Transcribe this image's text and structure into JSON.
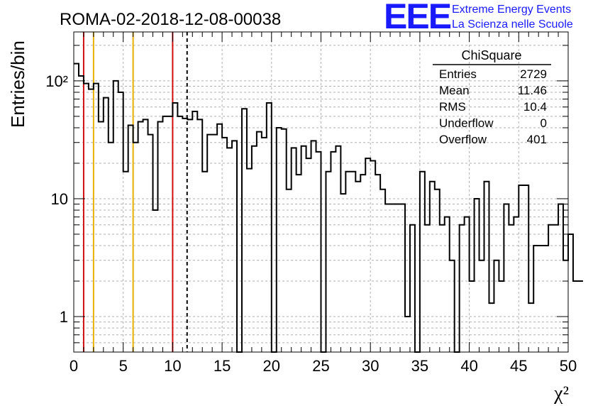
{
  "title": "ROMA-02-2018-12-08-00038",
  "logo": {
    "mark": "EEE",
    "line1": "Extreme Energy Events",
    "line2": "La Scienza nelle Scuole",
    "color": "#1a1aff"
  },
  "stats": {
    "name": "ChiSquare",
    "rows": [
      {
        "label": "Entries",
        "value": "2729"
      },
      {
        "label": "Mean",
        "value": "11.46"
      },
      {
        "label": "RMS",
        "value": "10.4"
      },
      {
        "label": "Underflow",
        "value": "0"
      },
      {
        "label": "Overflow",
        "value": "401"
      }
    ]
  },
  "chart_data": {
    "type": "histogram",
    "xlabel": "χ²",
    "ylabel": "Entries/bin",
    "xlim": [
      0,
      50
    ],
    "ylim": [
      0.5,
      260
    ],
    "yscale": "log",
    "grid": true,
    "bin_width": 0.5,
    "x_ticks": [
      "0",
      "5",
      "10",
      "15",
      "20",
      "25",
      "30",
      "35",
      "40",
      "45",
      "50"
    ],
    "y_ticks": [
      {
        "value": 1,
        "label": "1"
      },
      {
        "value": 10,
        "label": "10"
      },
      {
        "value": 100,
        "label": "10²"
      }
    ],
    "bin_values": [
      140,
      110,
      95,
      85,
      95,
      45,
      72,
      30,
      100,
      80,
      17,
      42,
      30,
      45,
      47,
      35,
      8,
      45,
      50,
      50,
      65,
      50,
      48,
      47,
      55,
      47,
      17,
      35,
      35,
      43,
      33,
      27,
      31,
      0.3,
      58,
      18,
      28,
      37,
      33,
      65,
      0.3,
      40,
      39,
      12,
      27,
      16,
      28,
      22,
      31,
      25,
      0.3,
      17,
      25,
      28,
      11,
      17,
      17,
      14,
      16,
      22,
      21,
      16,
      12,
      9,
      9,
      9,
      9,
      1,
      6,
      0.3,
      17,
      6,
      14,
      12,
      6,
      7,
      3,
      0.3,
      6,
      7,
      2,
      10,
      3,
      14,
      1.3,
      3,
      2,
      9,
      6,
      7,
      13,
      13,
      1.3,
      4,
      4,
      4,
      6,
      6,
      9,
      3,
      5,
      2,
      2
    ],
    "vertical_lines": [
      {
        "x": 1,
        "color": "#d01010",
        "style": "solid"
      },
      {
        "x": 2,
        "color": "#e8b000",
        "style": "solid"
      },
      {
        "x": 6,
        "color": "#e8b000",
        "style": "solid"
      },
      {
        "x": 10,
        "color": "#d01010",
        "style": "solid"
      },
      {
        "x": 11.46,
        "color": "#000000",
        "style": "dashed"
      }
    ]
  }
}
